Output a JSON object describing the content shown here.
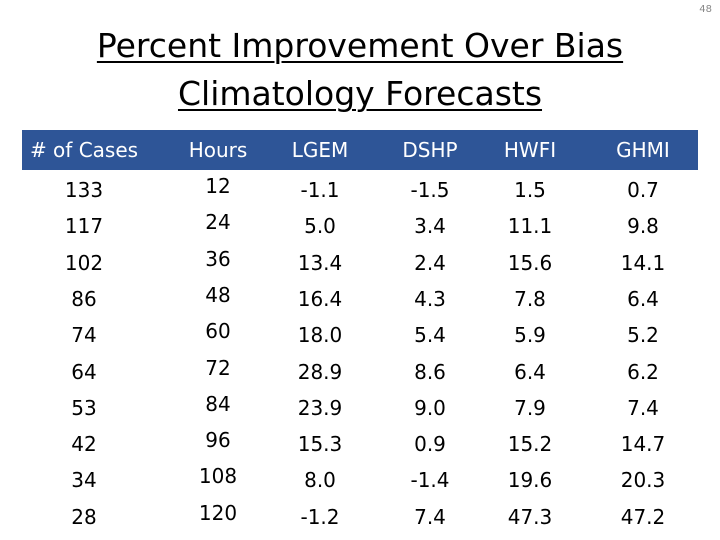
{
  "page_number": "48",
  "title": {
    "line1": "Percent Improvement Over Bias",
    "line2": "Climatology Forecasts"
  },
  "table": {
    "headers": [
      "# of Cases",
      "Hours",
      "LGEM",
      "DSHP",
      "HWFI",
      "GHMI"
    ],
    "rows": [
      [
        "133",
        "12",
        "-1.1",
        "-1.5",
        "1.5",
        "0.7"
      ],
      [
        "117",
        "24",
        "5.0",
        "3.4",
        "11.1",
        "9.8"
      ],
      [
        "102",
        "36",
        "13.4",
        "2.4",
        "15.6",
        "14.1"
      ],
      [
        "86",
        "48",
        "16.4",
        "4.3",
        "7.8",
        "6.4"
      ],
      [
        "74",
        "60",
        "18.0",
        "5.4",
        "5.9",
        "5.2"
      ],
      [
        "64",
        "72",
        "28.9",
        "8.6",
        "6.4",
        "6.2"
      ],
      [
        "53",
        "84",
        "23.9",
        "9.0",
        "7.9",
        "7.4"
      ],
      [
        "42",
        "96",
        "15.3",
        "0.9",
        "15.2",
        "14.7"
      ],
      [
        "34",
        "108",
        "8.0",
        "-1.4",
        "19.6",
        "20.3"
      ],
      [
        "28",
        "120",
        "-1.2",
        "7.4",
        "47.3",
        "47.2"
      ]
    ]
  }
}
